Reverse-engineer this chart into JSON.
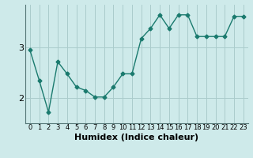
{
  "x": [
    0,
    1,
    2,
    3,
    4,
    5,
    6,
    7,
    8,
    9,
    10,
    11,
    12,
    13,
    14,
    15,
    16,
    17,
    18,
    19,
    20,
    21,
    22,
    23
  ],
  "y": [
    2.95,
    2.35,
    1.72,
    2.72,
    2.48,
    2.22,
    2.15,
    2.02,
    2.02,
    2.22,
    2.48,
    2.48,
    3.18,
    3.38,
    3.65,
    3.38,
    3.65,
    3.65,
    3.22,
    3.22,
    3.22,
    3.22,
    3.62,
    3.62
  ],
  "line_color": "#1a7a6e",
  "marker": "D",
  "markersize": 2.5,
  "background_color": "#ceeaea",
  "grid_color": "#aacccc",
  "xlabel": "Humidex (Indice chaleur)",
  "xlabel_fontsize": 8,
  "yticks": [
    2,
    3
  ],
  "xlim": [
    -0.5,
    23.5
  ],
  "ylim": [
    1.5,
    3.85
  ],
  "xtick_fontsize": 6,
  "ytick_fontsize": 8
}
